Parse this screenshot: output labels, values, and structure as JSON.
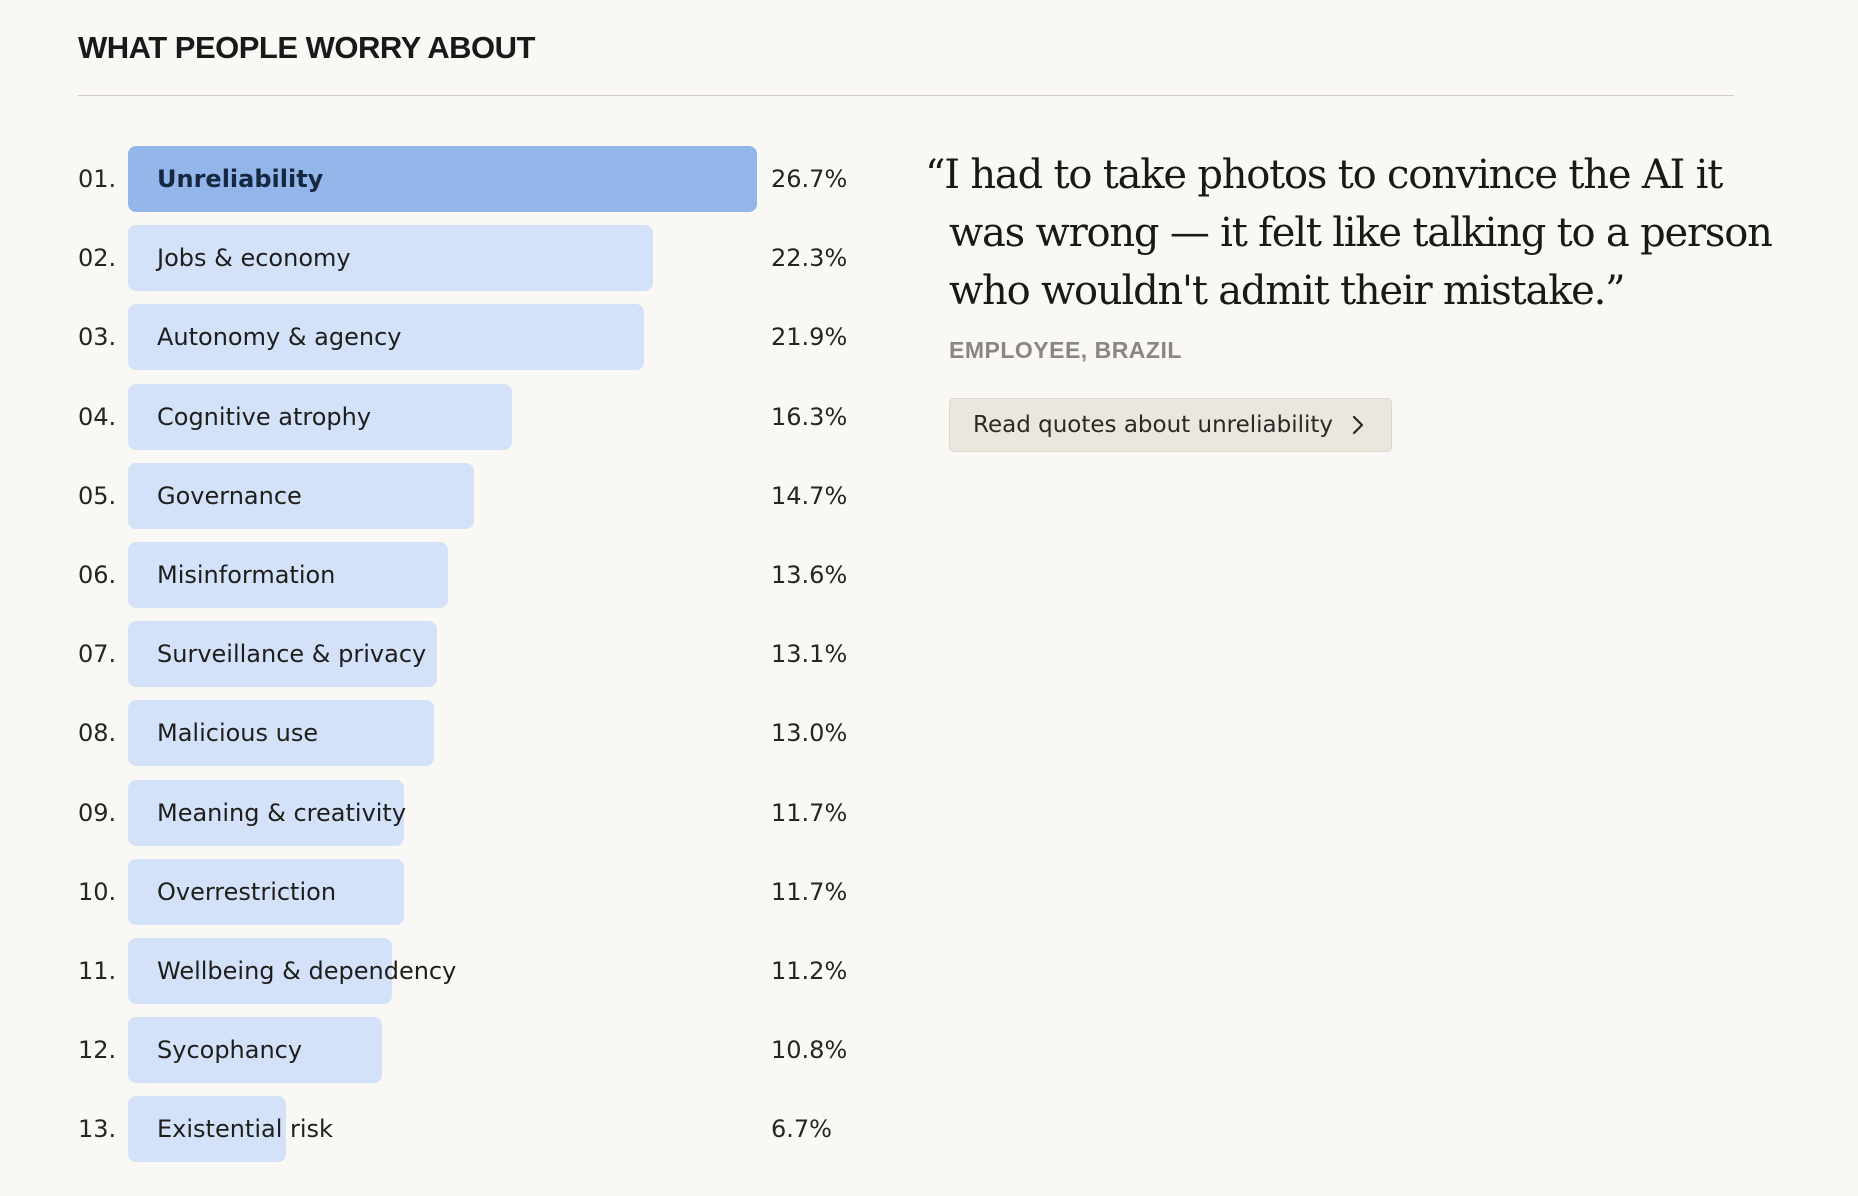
{
  "section": {
    "title": "WHAT PEOPLE WORRY ABOUT"
  },
  "chart_data": {
    "type": "bar",
    "orientation": "horizontal",
    "ranks": [
      "01.",
      "02.",
      "03.",
      "04.",
      "05.",
      "06.",
      "07.",
      "08.",
      "09.",
      "10.",
      "11.",
      "12.",
      "13."
    ],
    "categories": [
      "Unreliability",
      "Jobs & economy",
      "Autonomy & agency",
      "Cognitive atrophy",
      "Governance",
      "Misinformation",
      "Surveillance & privacy",
      "Malicious use",
      "Meaning & creativity",
      "Overrestriction",
      "Wellbeing & dependency",
      "Sycophancy",
      "Existential risk"
    ],
    "values": [
      26.7,
      22.3,
      21.9,
      16.3,
      14.7,
      13.6,
      13.1,
      13.0,
      11.7,
      11.7,
      11.2,
      10.8,
      6.7
    ],
    "value_labels": [
      "26.7%",
      "22.3%",
      "21.9%",
      "16.3%",
      "14.7%",
      "13.6%",
      "13.1%",
      "13.0%",
      "11.7%",
      "11.7%",
      "11.2%",
      "10.8%",
      "6.7%"
    ],
    "highlighted_index": 0,
    "title": "",
    "xlabel": "",
    "ylabel": "",
    "grid": false,
    "legend": "none"
  },
  "quote": {
    "lines": [
      "“I had to take photos to convince the AI it",
      "was wrong — it felt like talking to a person",
      "who wouldn't admit their mistake.”"
    ],
    "attribution": "EMPLOYEE, BRAZIL",
    "button_label": "Read quotes about unreliability",
    "button_icon": "chevron-right-icon"
  },
  "colors": {
    "background": "#faf8f4",
    "bar_default": "#d3e2f8",
    "bar_highlight": "#92b5ea",
    "attribution": "#8a8782",
    "button_bg": "#ebe7df"
  }
}
